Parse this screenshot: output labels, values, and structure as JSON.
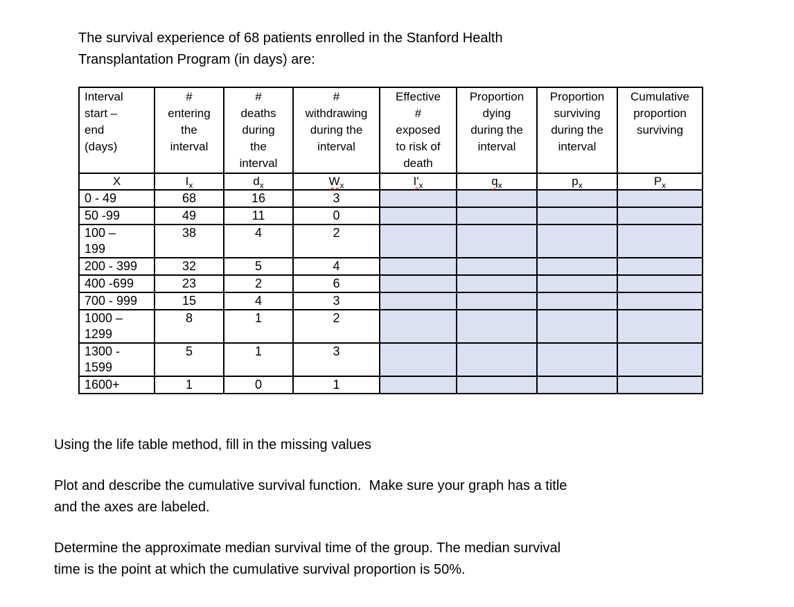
{
  "page": {
    "title": "The survival experience of 68 patients enrolled in the Stanford Health\nTransplantation Program (in days) are:"
  },
  "table": {
    "shaded_color": "#dbe1f0",
    "headers": [
      "Interval\nstart –\nend\n(days)",
      "#\nentering\nthe\ninterval",
      "#\ndeaths\nduring\nthe\ninterval",
      "#\nwithdrawing\nduring the\ninterval",
      "Effective\n#\nexposed\nto risk of\ndeath",
      "Proportion\ndying\nduring the\ninterval",
      "Proportion\nsurviving\nduring the\ninterval",
      "Cumulative\nproportion\nsurviving"
    ],
    "symbols": [
      {
        "base": "X",
        "sub": ""
      },
      {
        "base": "I",
        "sub": "x"
      },
      {
        "base": "d",
        "sub": "x"
      },
      {
        "base": "W",
        "sub": "x"
      },
      {
        "base": "I'",
        "sub": "x"
      },
      {
        "base": "q",
        "sub": "x"
      },
      {
        "base": "p",
        "sub": "x"
      },
      {
        "base": "P",
        "sub": "x"
      }
    ],
    "rows": [
      {
        "interval": "0 - 49",
        "entering": "68",
        "deaths": "16",
        "withdrawing": "3"
      },
      {
        "interval": "50 -99",
        "entering": "49",
        "deaths": "11",
        "withdrawing": "0"
      },
      {
        "interval": "100 –\n199",
        "entering": "38",
        "deaths": "4",
        "withdrawing": "2"
      },
      {
        "interval": "200 - 399",
        "entering": "32",
        "deaths": "5",
        "withdrawing": "4"
      },
      {
        "interval": "400 -699",
        "entering": "23",
        "deaths": "2",
        "withdrawing": "6"
      },
      {
        "interval": "700 - 999",
        "entering": "15",
        "deaths": "4",
        "withdrawing": "3"
      },
      {
        "interval": "1000 –\n1299",
        "entering": "8",
        "deaths": "1",
        "withdrawing": "2"
      },
      {
        "interval": "1300 -\n1599",
        "entering": "5",
        "deaths": "1",
        "withdrawing": "3"
      },
      {
        "interval": "1600+",
        "entering": "1",
        "deaths": "0",
        "withdrawing": "1"
      }
    ]
  },
  "instructions": {
    "p1": "Using the life table method, fill in the missing values",
    "p2": "Plot and describe the cumulative survival function.  Make sure your graph has a title\nand the axes are labeled.",
    "p3": "Determine the approximate median survival time of the group. The median survival\ntime is the point at which the cumulative survival proportion is 50%."
  }
}
